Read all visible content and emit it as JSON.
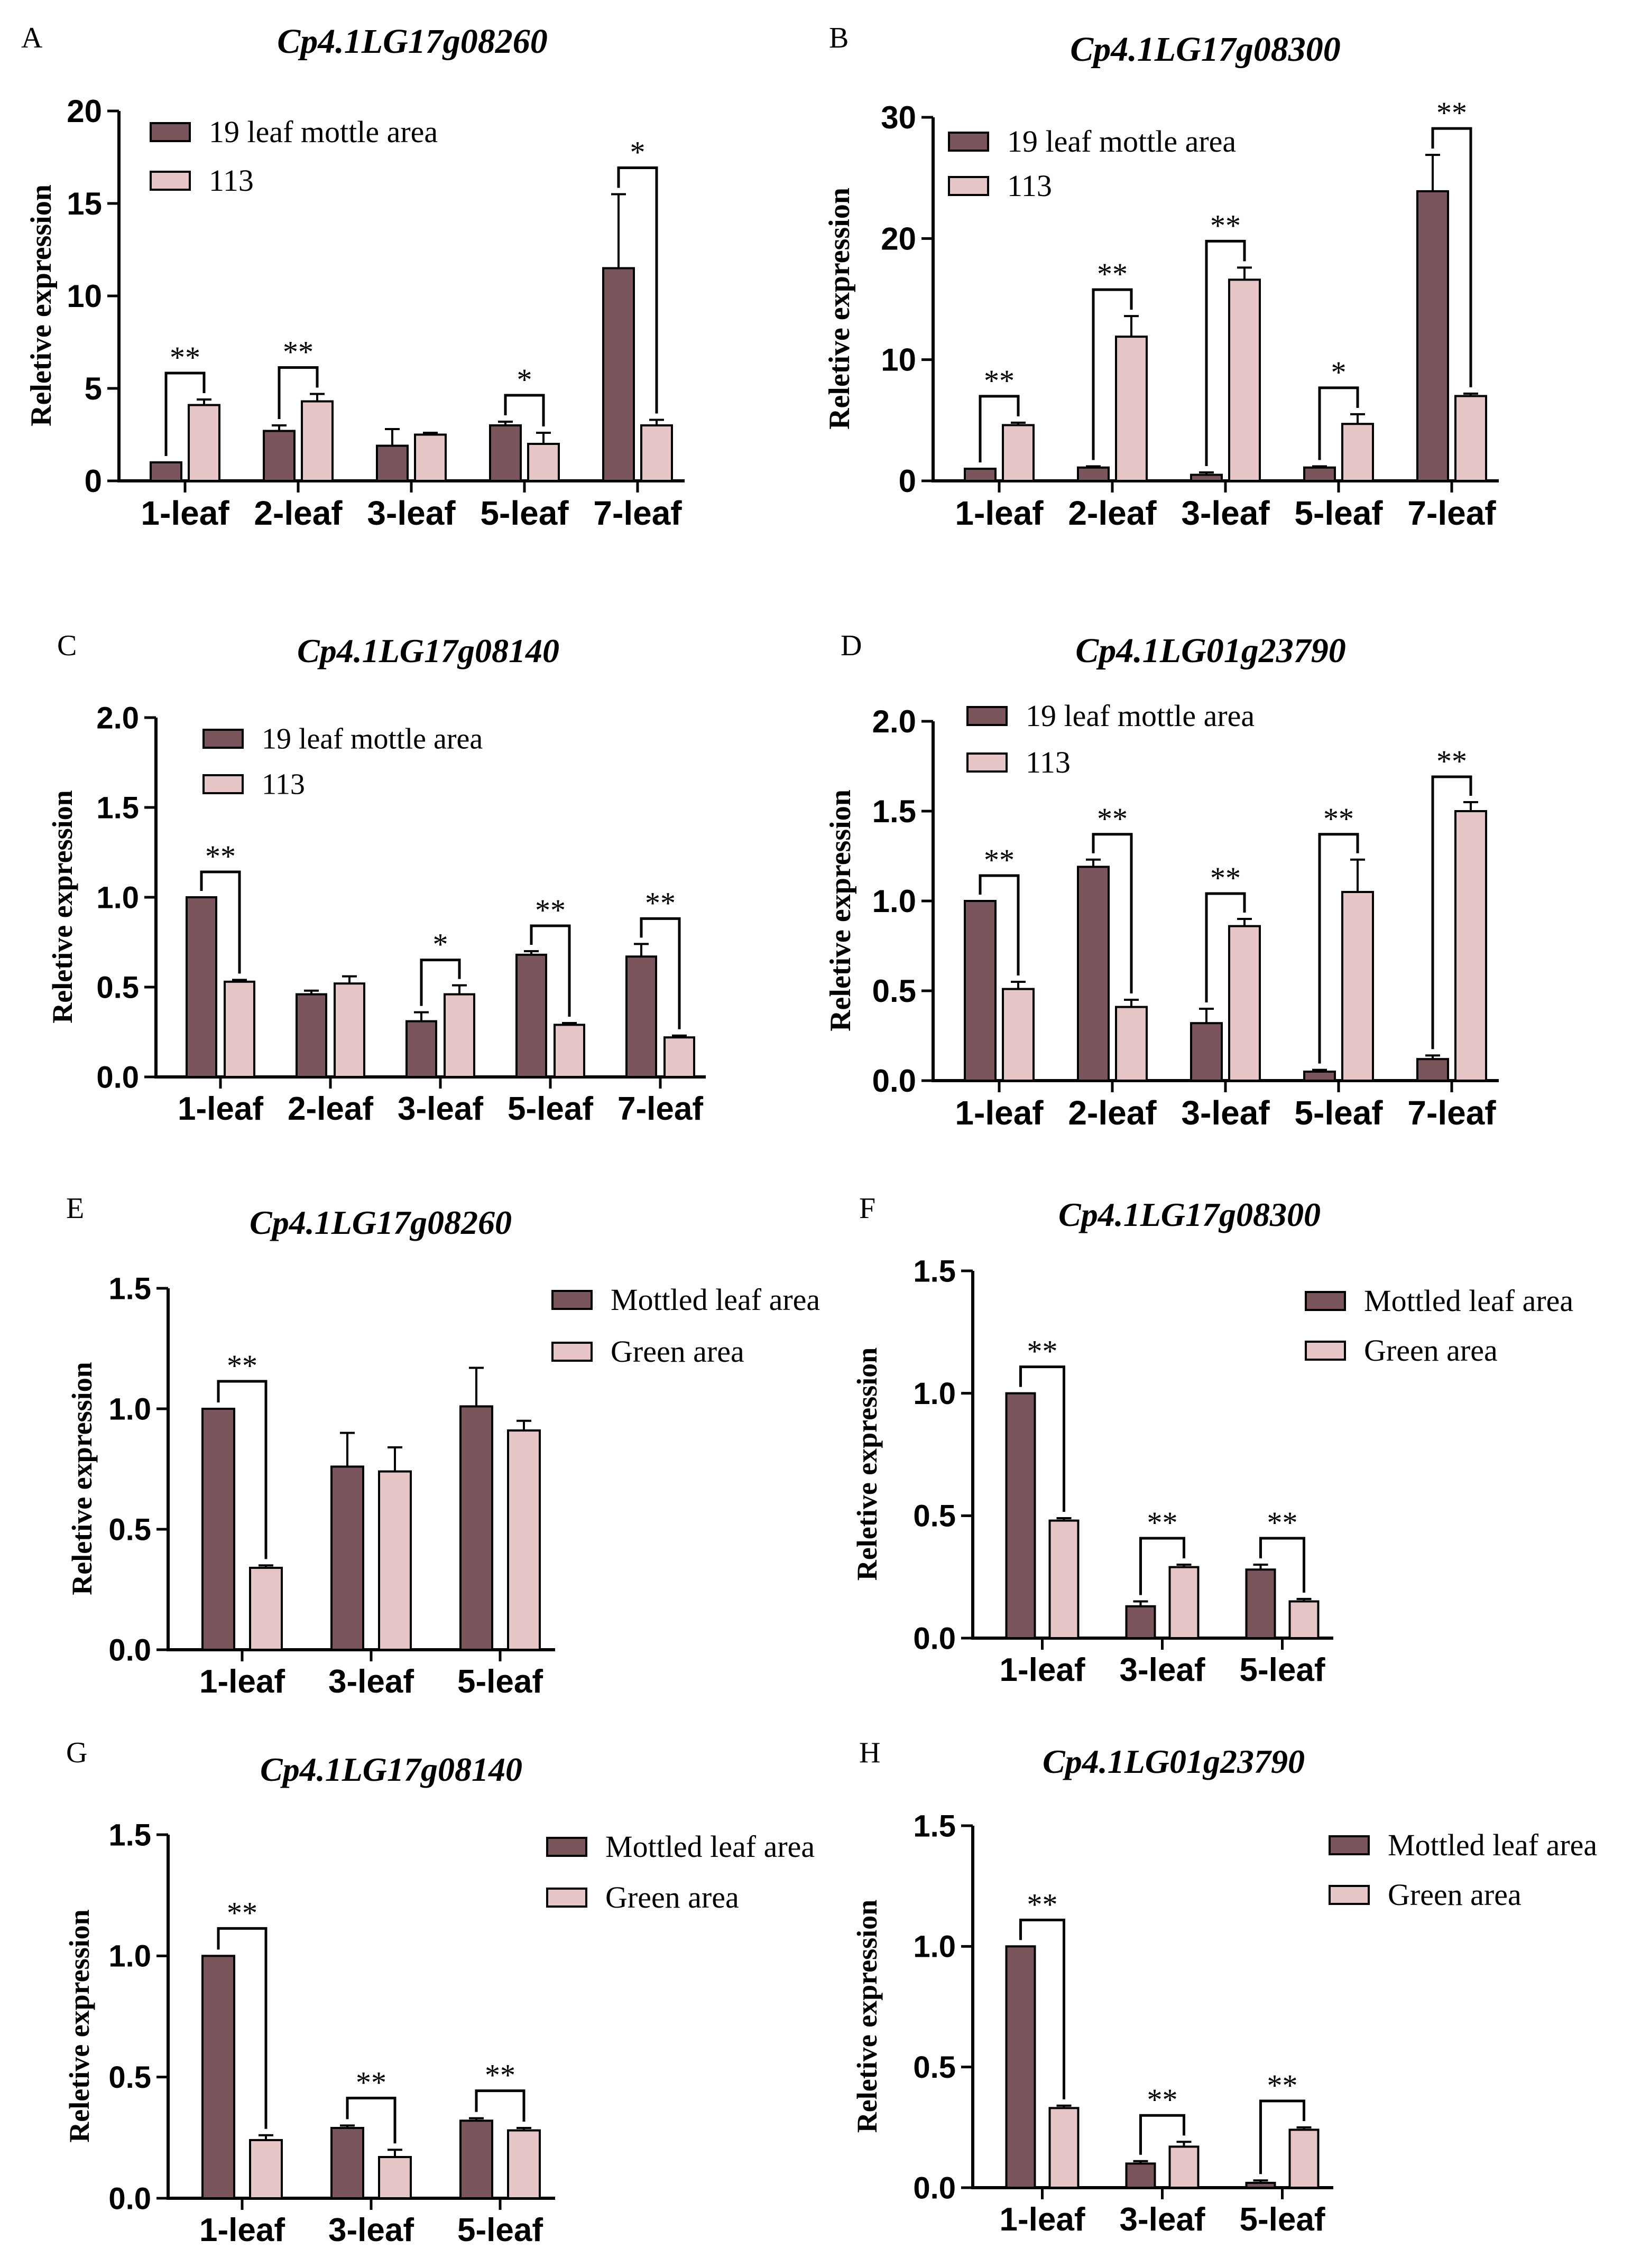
{
  "colors": {
    "series1": "#7a555c",
    "series2": "#e5c5c6",
    "axis": "#000000"
  },
  "chart_data": [
    {
      "letter": "A",
      "type": "bar",
      "title": "Cp4.1LG17g08260",
      "ylabel": "Reletive expression",
      "xlabel": "",
      "ylim": [
        0,
        20
      ],
      "yticks": [
        "0",
        "5",
        "10",
        "15",
        "20"
      ],
      "legend_position": "top-left",
      "categories": [
        "1-leaf",
        "2-leaf",
        "3-leaf",
        "5-leaf",
        "7-leaf"
      ],
      "series": [
        {
          "name": "19 leaf mottle area",
          "values": [
            1.0,
            2.7,
            1.9,
            3.0,
            11.5
          ],
          "errors": [
            0.0,
            0.3,
            0.9,
            0.2,
            4.0
          ]
        },
        {
          "name": "113",
          "values": [
            4.1,
            4.3,
            2.5,
            2.0,
            3.0
          ],
          "errors": [
            0.3,
            0.4,
            0.1,
            0.6,
            0.3
          ]
        }
      ],
      "significance": [
        "**",
        "**",
        "",
        "*",
        "*"
      ]
    },
    {
      "letter": "B",
      "type": "bar",
      "title": "Cp4.1LG17g08300",
      "ylabel": "Reletive expression",
      "xlabel": "",
      "ylim": [
        0,
        30
      ],
      "yticks": [
        "0",
        "10",
        "20",
        "30"
      ],
      "legend_position": "top-left",
      "categories": [
        "1-leaf",
        "2-leaf",
        "3-leaf",
        "5-leaf",
        "7-leaf"
      ],
      "series": [
        {
          "name": "19 leaf mottle area",
          "values": [
            1.0,
            1.1,
            0.5,
            1.1,
            23.9
          ],
          "errors": [
            0.0,
            0.1,
            0.2,
            0.1,
            3.0
          ]
        },
        {
          "name": "113",
          "values": [
            4.6,
            11.9,
            16.6,
            4.7,
            7.0
          ],
          "errors": [
            0.2,
            1.7,
            1.0,
            0.8,
            0.2
          ]
        }
      ],
      "significance": [
        "**",
        "**",
        "**",
        "*",
        "**"
      ]
    },
    {
      "letter": "C",
      "type": "bar",
      "title": "Cp4.1LG17g08140",
      "ylabel": "Reletive expression",
      "xlabel": "",
      "ylim": [
        0,
        2.0
      ],
      "yticks": [
        "0.0",
        "0.5",
        "1.0",
        "1.5",
        "2.0"
      ],
      "legend_position": "top-left",
      "categories": [
        "1-leaf",
        "2-leaf",
        "3-leaf",
        "5-leaf",
        "7-leaf"
      ],
      "series": [
        {
          "name": "19 leaf mottle area",
          "values": [
            1.0,
            0.46,
            0.31,
            0.68,
            0.67
          ],
          "errors": [
            0.0,
            0.02,
            0.05,
            0.02,
            0.07
          ]
        },
        {
          "name": "113",
          "values": [
            0.53,
            0.52,
            0.46,
            0.29,
            0.22
          ],
          "errors": [
            0.01,
            0.04,
            0.05,
            0.01,
            0.01
          ]
        }
      ],
      "significance": [
        "**",
        "",
        "*",
        "**",
        "**"
      ]
    },
    {
      "letter": "D",
      "type": "bar",
      "title": "Cp4.1LG01g23790",
      "ylabel": "Reletive expression",
      "xlabel": "",
      "ylim": [
        0,
        2.0
      ],
      "yticks": [
        "0.0",
        "0.5",
        "1.0",
        "1.5",
        "2.0"
      ],
      "legend_position": "top-left",
      "categories": [
        "1-leaf",
        "2-leaf",
        "3-leaf",
        "5-leaf",
        "7-leaf"
      ],
      "series": [
        {
          "name": "19 leaf mottle area",
          "values": [
            1.0,
            1.19,
            0.32,
            0.05,
            0.12
          ],
          "errors": [
            0.0,
            0.04,
            0.08,
            0.01,
            0.02
          ]
        },
        {
          "name": "113",
          "values": [
            0.51,
            0.41,
            0.86,
            1.05,
            1.5
          ],
          "errors": [
            0.04,
            0.04,
            0.04,
            0.18,
            0.05
          ]
        }
      ],
      "significance": [
        "**",
        "**",
        "**",
        "**",
        "**"
      ]
    },
    {
      "letter": "E",
      "type": "bar",
      "title": "Cp4.1LG17g08260",
      "ylabel": "Reletive expression",
      "xlabel": "",
      "ylim": [
        0,
        1.5
      ],
      "yticks": [
        "0.0",
        "0.5",
        "1.0",
        "1.5"
      ],
      "legend_position": "top-right",
      "categories": [
        "1-leaf",
        "3-leaf",
        "5-leaf"
      ],
      "series": [
        {
          "name": "Mottled leaf area",
          "values": [
            1.0,
            0.76,
            1.01
          ],
          "errors": [
            0.0,
            0.14,
            0.16
          ]
        },
        {
          "name": "Green area",
          "values": [
            0.34,
            0.74,
            0.91
          ],
          "errors": [
            0.01,
            0.1,
            0.04
          ]
        }
      ],
      "significance": [
        "**",
        "",
        ""
      ]
    },
    {
      "letter": "F",
      "type": "bar",
      "title": "Cp4.1LG17g08300",
      "ylabel": "Reletive expression",
      "xlabel": "",
      "ylim": [
        0,
        1.5
      ],
      "yticks": [
        "0.0",
        "0.5",
        "1.0",
        "1.5"
      ],
      "legend_position": "top-right",
      "categories": [
        "1-leaf",
        "3-leaf",
        "5-leaf"
      ],
      "series": [
        {
          "name": "Mottled leaf area",
          "values": [
            1.0,
            0.13,
            0.28
          ],
          "errors": [
            0.0,
            0.02,
            0.02
          ]
        },
        {
          "name": "Green area",
          "values": [
            0.48,
            0.29,
            0.15
          ],
          "errors": [
            0.01,
            0.01,
            0.01
          ]
        }
      ],
      "significance": [
        "**",
        "**",
        "**"
      ]
    },
    {
      "letter": "G",
      "type": "bar",
      "title": "Cp4.1LG17g08140",
      "ylabel": "Reletive expression",
      "xlabel": "",
      "ylim": [
        0,
        1.5
      ],
      "yticks": [
        "0.0",
        "0.5",
        "1.0",
        "1.5"
      ],
      "legend_position": "top-right",
      "categories": [
        "1-leaf",
        "3-leaf",
        "5-leaf"
      ],
      "series": [
        {
          "name": "Mottled leaf area",
          "values": [
            1.0,
            0.29,
            0.32
          ],
          "errors": [
            0.0,
            0.01,
            0.01
          ]
        },
        {
          "name": "Green area",
          "values": [
            0.24,
            0.17,
            0.28
          ],
          "errors": [
            0.02,
            0.03,
            0.01
          ]
        }
      ],
      "significance": [
        "**",
        "**",
        "**"
      ]
    },
    {
      "letter": "H",
      "type": "bar",
      "title": "Cp4.1LG01g23790",
      "ylabel": "Reletive expression",
      "xlabel": "",
      "ylim": [
        0,
        1.5
      ],
      "yticks": [
        "0.0",
        "0.5",
        "1.0",
        "1.5"
      ],
      "legend_position": "top-right",
      "categories": [
        "1-leaf",
        "3-leaf",
        "5-leaf"
      ],
      "series": [
        {
          "name": "Mottled leaf area",
          "values": [
            1.0,
            0.1,
            0.02
          ],
          "errors": [
            0.0,
            0.01,
            0.01
          ]
        },
        {
          "name": "Green area",
          "values": [
            0.33,
            0.17,
            0.24
          ],
          "errors": [
            0.01,
            0.02,
            0.01
          ]
        }
      ],
      "significance": [
        "**",
        "**",
        "**"
      ]
    }
  ]
}
